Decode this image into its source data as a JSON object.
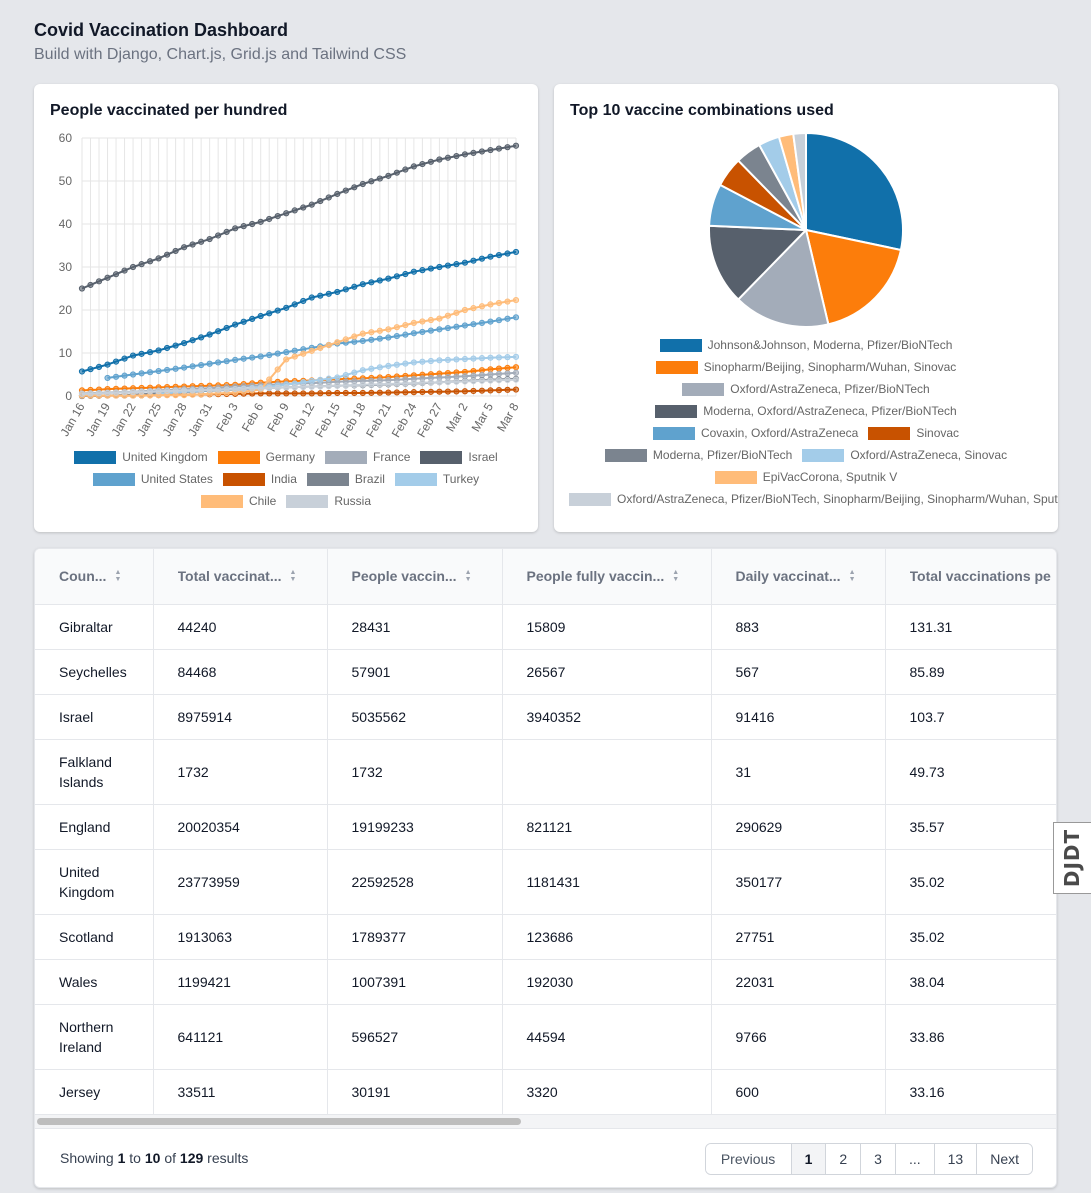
{
  "header": {
    "title": "Covid Vaccination Dashboard",
    "subtitle": "Build with Django, Chart.js, Grid.js and Tailwind CSS"
  },
  "line_card": {
    "title": "People vaccinated per hundred"
  },
  "pie_card": {
    "title": "Top 10 vaccine combinations used"
  },
  "chart_data": [
    {
      "type": "line",
      "title": "People vaccinated per hundred",
      "x": [
        "Jan 16",
        "Jan 19",
        "Jan 22",
        "Jan 25",
        "Jan 28",
        "Jan 31",
        "Feb 3",
        "Feb 6",
        "Feb 9",
        "Feb 12",
        "Feb 15",
        "Feb 18",
        "Feb 21",
        "Feb 24",
        "Feb 27",
        "Mar 2",
        "Mar 5",
        "Mar 8"
      ],
      "ylim": [
        0,
        60
      ],
      "yticks": [
        0,
        10,
        20,
        30,
        40,
        50,
        60
      ],
      "grid": true,
      "legend": "bottom",
      "series": [
        {
          "name": "United Kingdom",
          "color": "#1170aa",
          "values": [
            5.7,
            7.3,
            9.4,
            10.6,
            12.3,
            14.3,
            16.6,
            18.6,
            20.5,
            22.9,
            24.2,
            26.0,
            27.3,
            28.9,
            30.0,
            31.0,
            32.4,
            33.5
          ]
        },
        {
          "name": "Germany",
          "color": "#fc7d0b",
          "values": [
            1.3,
            1.6,
            1.8,
            2.0,
            2.2,
            2.4,
            2.6,
            3.1,
            3.4,
            3.6,
            3.9,
            4.1,
            4.4,
            4.8,
            5.2,
            5.6,
            6.2,
            6.7
          ]
        },
        {
          "name": "France",
          "color": "#a3acb9",
          "values": [
            0.6,
            0.8,
            1.0,
            1.3,
            1.6,
            1.8,
            2.2,
            2.5,
            2.8,
            3.0,
            3.3,
            3.5,
            3.7,
            4.0,
            4.3,
            4.6,
            5.0,
            5.4
          ]
        },
        {
          "name": "Israel",
          "color": "#57606c",
          "values": [
            25.0,
            27.5,
            30.0,
            32.0,
            34.6,
            36.5,
            39.0,
            40.5,
            42.5,
            44.5,
            47.0,
            49.3,
            51.2,
            53.4,
            55.0,
            56.2,
            57.2,
            58.2
          ]
        },
        {
          "name": "United States",
          "color": "#5fa2ce",
          "values": [
            null,
            4.2,
            5.0,
            5.8,
            6.6,
            7.5,
            8.4,
            9.2,
            10.2,
            11.2,
            12.2,
            12.8,
            13.6,
            14.6,
            15.5,
            16.4,
            17.3,
            18.3
          ]
        },
        {
          "name": "India",
          "color": "#c85200",
          "values": [
            0.0,
            0.1,
            0.1,
            0.2,
            0.3,
            0.4,
            0.5,
            0.6,
            0.6,
            0.6,
            0.7,
            0.7,
            0.8,
            0.9,
            1.0,
            1.1,
            1.3,
            1.5
          ]
        },
        {
          "name": "Brazil",
          "color": "#7b848f",
          "values": [
            0.0,
            0.1,
            0.3,
            0.6,
            0.9,
            1.2,
            1.5,
            1.8,
            2.0,
            2.2,
            2.4,
            2.5,
            2.7,
            2.9,
            3.2,
            3.5,
            3.8,
            4.0
          ]
        },
        {
          "name": "Turkey",
          "color": "#a3cce9",
          "values": [
            null,
            null,
            null,
            0.5,
            1.0,
            1.3,
            1.6,
            2.0,
            2.6,
            3.5,
            4.3,
            6.0,
            7.0,
            7.8,
            8.3,
            8.6,
            8.9,
            9.1
          ]
        },
        {
          "name": "Chile",
          "color": "#ffbc79",
          "values": [
            0.1,
            0.1,
            0.1,
            0.2,
            0.2,
            0.5,
            0.8,
            1.5,
            8.5,
            10.5,
            12.5,
            14.5,
            15.5,
            17.0,
            18.0,
            20.0,
            21.3,
            22.3
          ]
        },
        {
          "name": "Russia",
          "color": "#c8d0d9",
          "values": [
            0.5,
            0.7,
            0.9,
            1.1,
            1.3,
            1.4,
            1.6,
            1.8,
            2.0,
            2.2,
            2.4,
            2.6,
            2.8,
            3.0,
            3.2,
            3.4,
            3.6,
            3.8
          ]
        }
      ]
    },
    {
      "type": "pie",
      "title": "Top 10 vaccine combinations used",
      "legend": "bottom",
      "slices": [
        {
          "label": "Johnson&Johnson, Moderna, Pfizer/BioNTech",
          "value": 28.3,
          "color": "#1170aa"
        },
        {
          "label": "Sinopharm/Beijing, Sinopharm/Wuhan, Sinovac",
          "value": 18.0,
          "color": "#fc7d0b"
        },
        {
          "label": "Oxford/AstraZeneca, Pfizer/BioNTech",
          "value": 16.0,
          "color": "#a3acb9"
        },
        {
          "label": "Moderna, Oxford/AstraZeneca, Pfizer/BioNTech",
          "value": 13.4,
          "color": "#57606c"
        },
        {
          "label": "Covaxin, Oxford/AstraZeneca",
          "value": 7.0,
          "color": "#5fa2ce"
        },
        {
          "label": "Sinovac",
          "value": 5.0,
          "color": "#c85200"
        },
        {
          "label": "Moderna, Pfizer/BioNTech",
          "value": 4.3,
          "color": "#7b848f"
        },
        {
          "label": "Oxford/AstraZeneca, Sinovac",
          "value": 3.5,
          "color": "#a3cce9"
        },
        {
          "label": "EpiVacCorona, Sputnik V",
          "value": 2.4,
          "color": "#ffbc79"
        },
        {
          "label": "Oxford/AstraZeneca, Pfizer/BioNTech, Sinopharm/Beijing, Sinopharm/Wuhan, Sputnik V",
          "value": 2.1,
          "color": "#c8d0d9"
        }
      ]
    }
  ],
  "table": {
    "columns": [
      "Coun...",
      "Total vaccinat...",
      "People vaccin...",
      "People fully vaccin...",
      "Daily vaccinat...",
      "Total vaccinations pe"
    ],
    "rows": [
      [
        "Gibraltar",
        "44240",
        "28431",
        "15809",
        "883",
        "131.31"
      ],
      [
        "Seychelles",
        "84468",
        "57901",
        "26567",
        "567",
        "85.89"
      ],
      [
        "Israel",
        "8975914",
        "5035562",
        "3940352",
        "91416",
        "103.7"
      ],
      [
        "Falkland Islands",
        "1732",
        "1732",
        "",
        "31",
        "49.73"
      ],
      [
        "England",
        "20020354",
        "19199233",
        "821121",
        "290629",
        "35.57"
      ],
      [
        "United Kingdom",
        "23773959",
        "22592528",
        "1181431",
        "350177",
        "35.02"
      ],
      [
        "Scotland",
        "1913063",
        "1789377",
        "123686",
        "27751",
        "35.02"
      ],
      [
        "Wales",
        "1199421",
        "1007391",
        "192030",
        "22031",
        "38.04"
      ],
      [
        "Northern Ireland",
        "641121",
        "596527",
        "44594",
        "9766",
        "33.86"
      ],
      [
        "Jersey",
        "33511",
        "30191",
        "3320",
        "600",
        "33.16"
      ]
    ]
  },
  "pagination": {
    "showing": "Showing",
    "from": "1",
    "to_word": "to",
    "to": "10",
    "of_word": "of",
    "total": "129",
    "results_word": "results",
    "previous": "Previous",
    "pages": [
      "1",
      "2",
      "3",
      "...",
      "13"
    ],
    "next": "Next"
  },
  "debug_toolbar": {
    "label": "DJDT"
  }
}
